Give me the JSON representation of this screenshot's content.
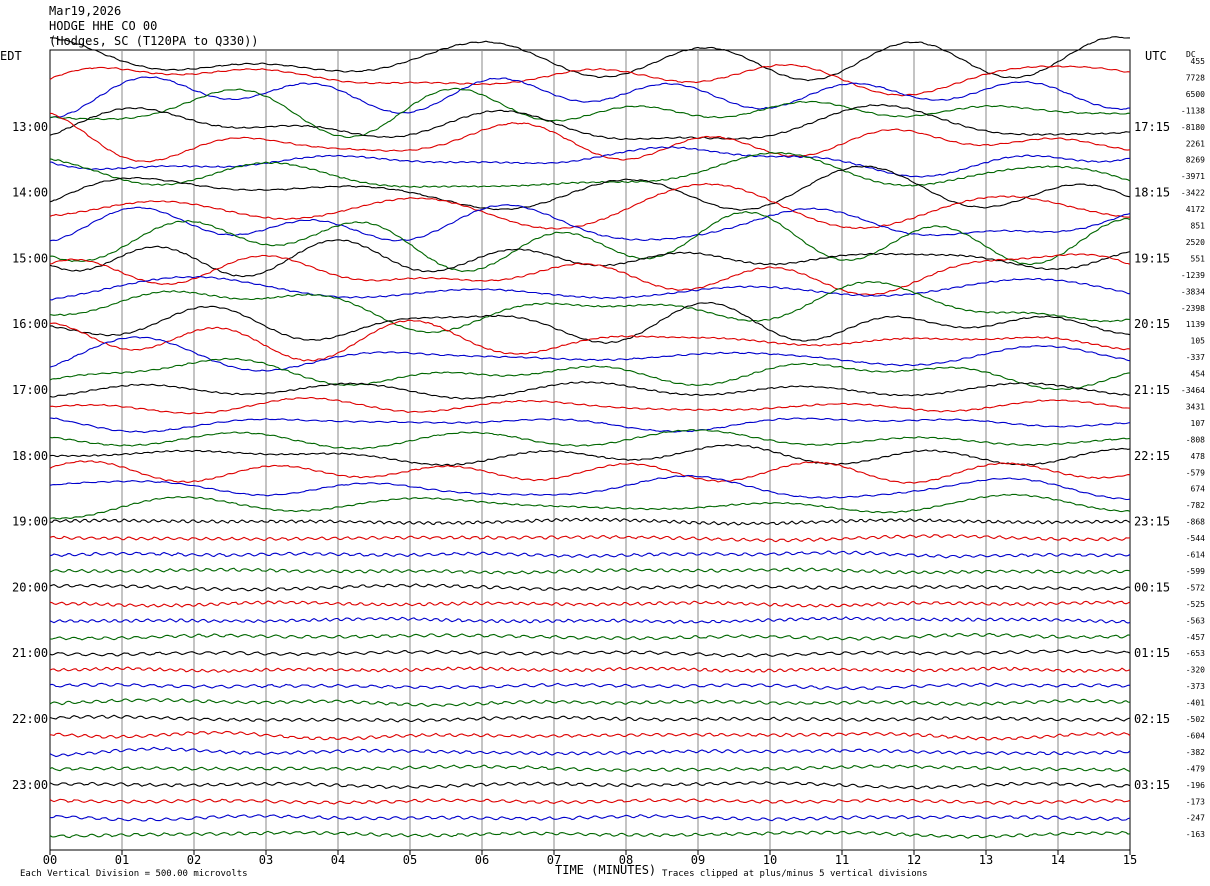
{
  "header": {
    "date": "Mar19,2026",
    "station": "HODGE HHE CO 00",
    "location": "(Hodges, SC (T120PA to Q330))"
  },
  "axis": {
    "left_title": "EDT",
    "right_title": "UTC",
    "dc_title": "DC",
    "xlabel": "TIME (MINUTES)",
    "footer_left": "Each Vertical Division =  500.00 microvolts",
    "footer_right": "Traces clipped at plus/minus 5 vertical divisions"
  },
  "chart_data": {
    "type": "line",
    "title": "HODGE HHE CO 00",
    "xlabel": "TIME (MINUTES)",
    "xlim": [
      0,
      15
    ],
    "x_ticks": [
      "00",
      "01",
      "02",
      "03",
      "04",
      "05",
      "06",
      "07",
      "08",
      "09",
      "10",
      "11",
      "12",
      "13",
      "14",
      "15"
    ],
    "grid": "vertical lines at each minute",
    "trace_colors": [
      "#000000",
      "#dd0000",
      "#0000cc",
      "#006600"
    ],
    "left_hour_labels": [
      "13:00",
      "14:00",
      "15:00",
      "16:00",
      "17:00",
      "18:00",
      "19:00",
      "20:00",
      "21:00",
      "22:00",
      "23:00"
    ],
    "right_hour_labels": [
      "17:15",
      "18:15",
      "19:15",
      "20:15",
      "21:15",
      "22:15",
      "23:15",
      "00:15",
      "01:15",
      "02:15",
      "03:15"
    ],
    "dc_offsets": [
      "455",
      "7728",
      "6500",
      "-1138",
      "-8180",
      "2261",
      "8269",
      "-3971",
      "-3422",
      "4172",
      "851",
      "2520",
      "551",
      "-1239",
      "-3834",
      "-2398",
      "1139",
      "105",
      "-337",
      "454",
      "-3464",
      "3431",
      "107",
      "-808",
      "478",
      "-579",
      "674",
      "-782",
      "-868",
      "-544",
      "-614",
      "-599",
      "-572",
      "-525",
      "-563",
      "-457",
      "-653",
      "-320",
      "-373",
      "-401",
      "-502",
      "-604",
      "-382",
      "-479",
      "-196",
      "-173",
      "-247",
      "-163"
    ]
  }
}
